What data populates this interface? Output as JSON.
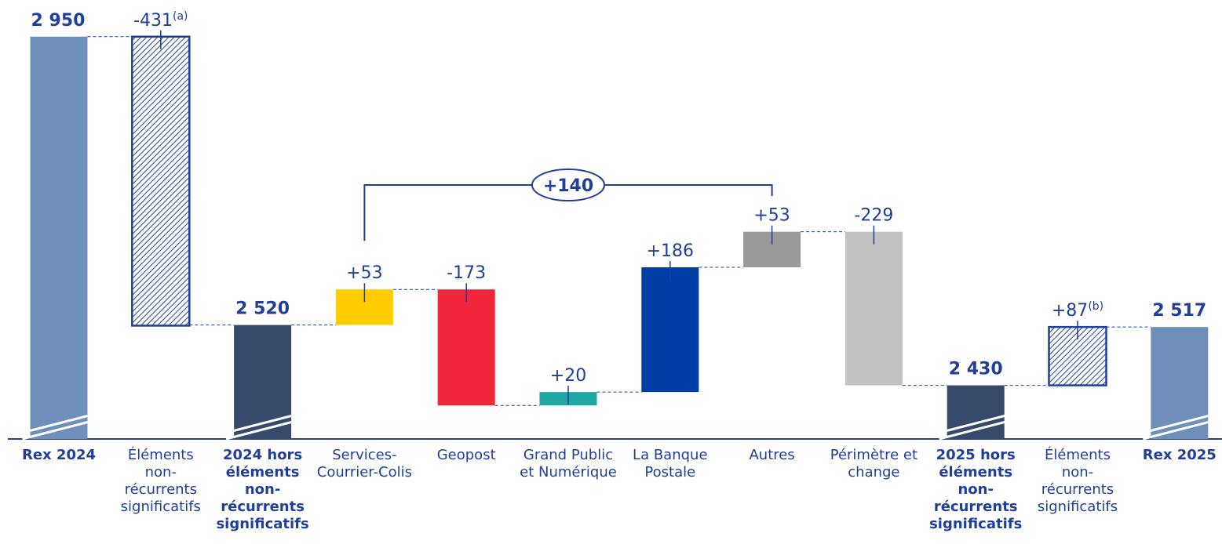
{
  "chart_data": {
    "type": "waterfall",
    "categories": [
      "Rex 2024",
      "Éléments non-récurrents significatifs",
      "2024 hors éléments non-récurrents significatifs",
      "Services-Courrier-Colis",
      "Geopost",
      "Grand Public et Numérique",
      "La Banque Postale",
      "Autres",
      "Périmètre et change",
      "2025 hors éléments non-récurrents significatifs",
      "Éléments non-récurrents significatifs",
      "Rex 2025"
    ],
    "values": [
      2950,
      -431,
      2520,
      53,
      -173,
      20,
      186,
      53,
      -229,
      2430,
      87,
      2517
    ],
    "value_labels": [
      "2 950",
      "-431",
      "2 520",
      "+53",
      "-173",
      "+20",
      "+186",
      "+53",
      "-229",
      "2 430",
      "+87",
      "2 517"
    ],
    "footnotes": [
      null,
      "(a)",
      null,
      null,
      null,
      null,
      null,
      null,
      null,
      null,
      "(b)",
      null
    ],
    "measures": [
      "absolute",
      "relative",
      "absolute",
      "relative",
      "relative",
      "relative",
      "relative",
      "relative",
      "relative",
      "absolute",
      "relative",
      "absolute"
    ],
    "colors": [
      "#6f8fbb",
      "#ffffff",
      "#374a6b",
      "#ffcc00",
      "#f0273a",
      "#1fa7a3",
      "#003da5",
      "#999999",
      "#c2c2c2",
      "#374a6b",
      "#ffffff",
      "#6f8fbb"
    ],
    "hatched": [
      false,
      true,
      false,
      false,
      false,
      false,
      false,
      false,
      false,
      false,
      true,
      false
    ],
    "annotation": {
      "label": "+140",
      "value": 140
    },
    "ylim": [
      2350,
      3000
    ]
  }
}
